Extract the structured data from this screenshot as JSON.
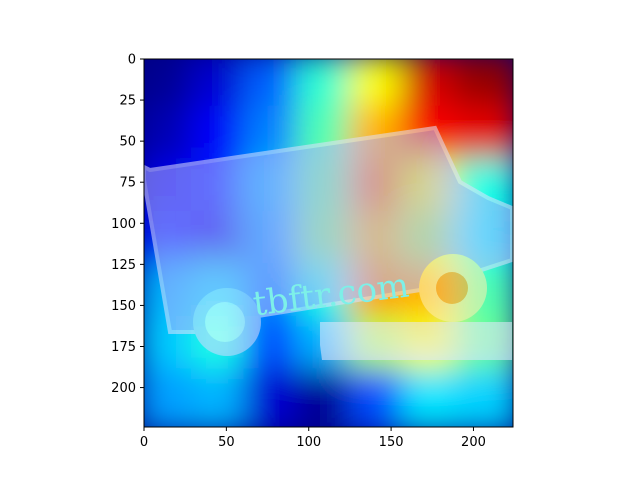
{
  "chart_data": {
    "type": "heatmap",
    "title": "",
    "xlabel": "",
    "ylabel": "",
    "xlim": [
      0,
      224
    ],
    "ylim": [
      224,
      0
    ],
    "x_ticks": [
      0,
      50,
      100,
      150,
      200
    ],
    "y_ticks": [
      0,
      25,
      50,
      75,
      100,
      125,
      150,
      175,
      200
    ],
    "colormap": "jet",
    "overlay_alpha": 0.7,
    "underlying_image": "van-silhouette",
    "image_text": "tbftr.com",
    "intensity_grid": {
      "rows": 7,
      "cols": 7,
      "values": [
        [
          0.02,
          0.08,
          0.22,
          0.42,
          0.62,
          0.92,
          0.98
        ],
        [
          0.05,
          0.12,
          0.25,
          0.45,
          0.7,
          0.88,
          0.9
        ],
        [
          0.1,
          0.15,
          0.3,
          0.48,
          0.75,
          0.62,
          0.4
        ],
        [
          0.15,
          0.1,
          0.28,
          0.5,
          0.68,
          0.55,
          0.38
        ],
        [
          0.3,
          0.35,
          0.25,
          0.4,
          0.72,
          0.7,
          0.45
        ],
        [
          0.32,
          0.4,
          0.2,
          0.3,
          0.55,
          0.62,
          0.48
        ],
        [
          0.28,
          0.3,
          0.08,
          0.02,
          0.2,
          0.35,
          0.33
        ]
      ]
    }
  },
  "colors": {
    "background": "#ffffff",
    "axis": "#000000",
    "image_watermark": "#7df0e8"
  }
}
